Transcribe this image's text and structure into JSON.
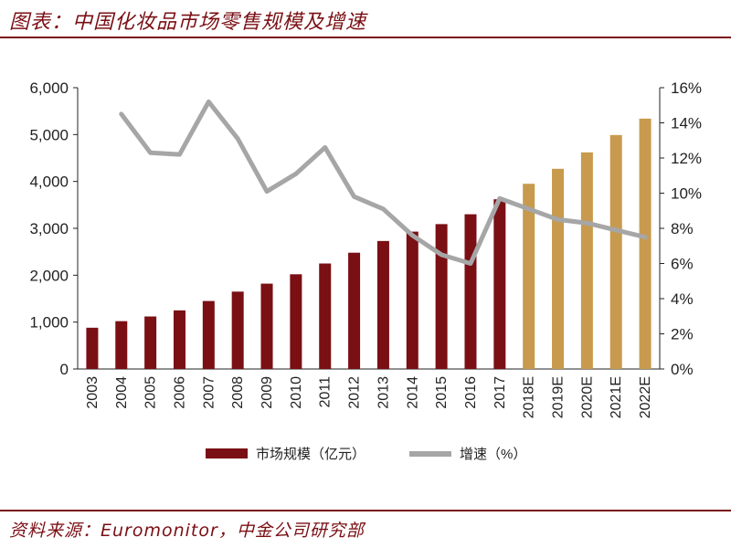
{
  "header": {
    "title": "图表：中国化妆品市场零售规模及增速"
  },
  "footer": {
    "source": "资料来源：Euromonitor，中金公司研究部"
  },
  "colors": {
    "actual_bar": "#7a0f14",
    "forecast_bar": "#c79a4e",
    "growth_line": "#a6a6a6",
    "accent": "#7a0f14"
  },
  "chart_data": {
    "type": "bar",
    "categories": [
      "2003",
      "2004",
      "2005",
      "2006",
      "2007",
      "2008",
      "2009",
      "2010",
      "2011",
      "2012",
      "2013",
      "2014",
      "2015",
      "2016",
      "2017",
      "2018E",
      "2019E",
      "2020E",
      "2021E",
      "2022E"
    ],
    "series": [
      {
        "name": "市场规模（亿元）",
        "kind": "bar",
        "axis": "left",
        "values": [
          880,
          1020,
          1120,
          1250,
          1450,
          1650,
          1820,
          2020,
          2250,
          2480,
          2730,
          2930,
          3090,
          3300,
          3620,
          3950,
          4270,
          4620,
          4990,
          5340
        ],
        "forecast_from_index": 15
      },
      {
        "name": "增速（%）",
        "kind": "line",
        "axis": "right",
        "values": [
          null,
          14.5,
          12.3,
          12.2,
          15.2,
          13.1,
          10.1,
          11.1,
          12.6,
          9.8,
          9.1,
          7.6,
          6.5,
          6.0,
          9.7,
          9.1,
          8.5,
          8.3,
          7.9,
          7.5
        ]
      }
    ],
    "y_left": {
      "min": 0,
      "max": 6000,
      "ticks": [
        "0",
        "1,000",
        "2,000",
        "3,000",
        "4,000",
        "5,000",
        "6,000"
      ]
    },
    "y_right": {
      "min": 0,
      "max": 16,
      "ticks": [
        "0%",
        "2%",
        "4%",
        "6%",
        "8%",
        "10%",
        "12%",
        "14%",
        "16%"
      ]
    },
    "legend": {
      "placement": "bottom-center",
      "items": [
        "市场规模（亿元）",
        "增速（%）"
      ]
    },
    "grid": false
  }
}
